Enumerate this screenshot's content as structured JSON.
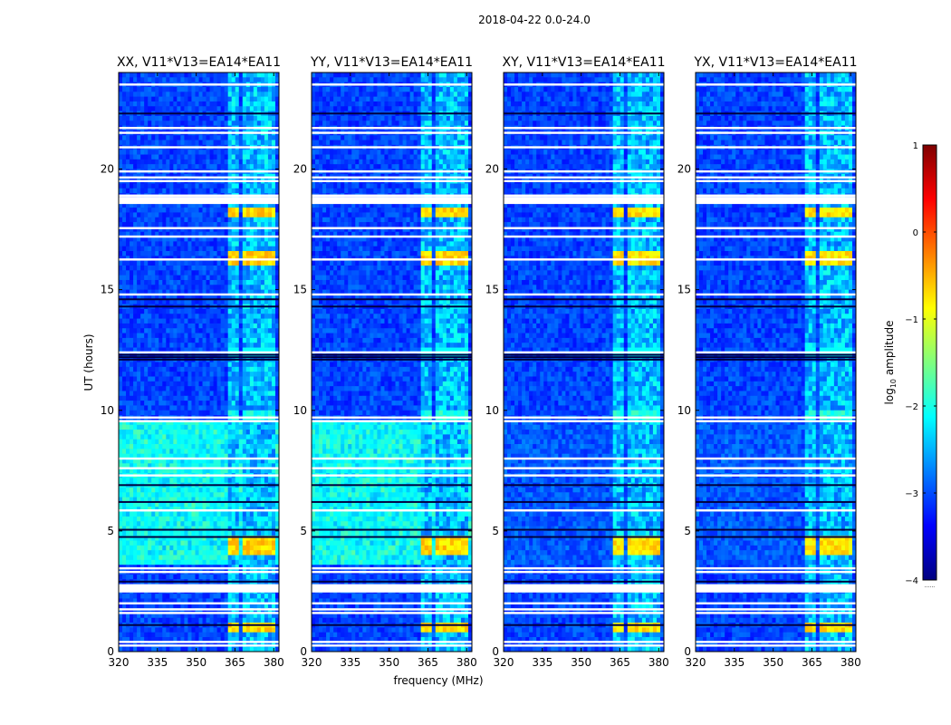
{
  "figure": {
    "title": "2018-04-22 0.0-24.0"
  },
  "chart_data": {
    "type": "heatmap",
    "title": "2018-04-22 0.0-24.0",
    "xlabel": "frequency (MHz)",
    "ylabel": "UT (hours)",
    "xlim": [
      320,
      382
    ],
    "ylim": [
      0,
      24
    ],
    "xticks": [
      "320",
      "335",
      "350",
      "365",
      "380"
    ],
    "yticks": [
      "0",
      "5",
      "10",
      "15",
      "20"
    ],
    "panels": [
      {
        "title": "XX, V11*V13=EA14*EA11",
        "band_intensity": 0.55,
        "wash_intensity": 0.45
      },
      {
        "title": "YY, V11*V13=EA14*EA11",
        "band_intensity": 0.55,
        "wash_intensity": 0.45
      },
      {
        "title": "XY, V11*V13=EA14*EA11",
        "band_intensity": 0.5,
        "wash_intensity": 0.05
      },
      {
        "title": "YX, V11*V13=EA14*EA11",
        "band_intensity": 0.5,
        "wash_intensity": 0.05
      }
    ],
    "rfi_bands_mhz": [
      [
        362,
        367
      ],
      [
        367.5,
        372
      ],
      [
        372.5,
        376.5
      ],
      [
        377,
        381
      ]
    ],
    "bright_rfi_intervals_ut": [
      [
        0.7,
        1.3
      ],
      [
        3.9,
        4.9
      ],
      [
        18.0,
        18.4
      ],
      [
        16.0,
        16.5
      ]
    ],
    "flagged_rows_ut": [
      0.25,
      0.4,
      1.6,
      1.75,
      2.0,
      2.55,
      2.65,
      2.75,
      3.3,
      3.45,
      5.85,
      7.3,
      7.6,
      8.0,
      9.55,
      9.7,
      12.4,
      14.8,
      16.25,
      17.2,
      17.55,
      18.6,
      18.75,
      18.9,
      19.5,
      19.65,
      19.9,
      20.9,
      21.5,
      21.7,
      23.5
    ],
    "dark_rows_ut": [
      1.1,
      2.9,
      4.75,
      5.05,
      6.2,
      6.9,
      12.1,
      12.2,
      12.3,
      14.3,
      14.6,
      22.3
    ],
    "colorbar": {
      "label": "log",
      "label_sub": "10",
      "label_rest": " amplitude",
      "min": -4,
      "max": 1,
      "ticks": [
        "−4",
        "−3",
        "−2",
        "−1",
        "0",
        "1"
      ],
      "colormap": "jet",
      "colors": [
        "#00007f",
        "#0000ff",
        "#007fff",
        "#00ffff",
        "#7fff7f",
        "#ffff00",
        "#ff7f00",
        "#ff0000",
        "#7f0000"
      ],
      "footer": "......"
    }
  }
}
